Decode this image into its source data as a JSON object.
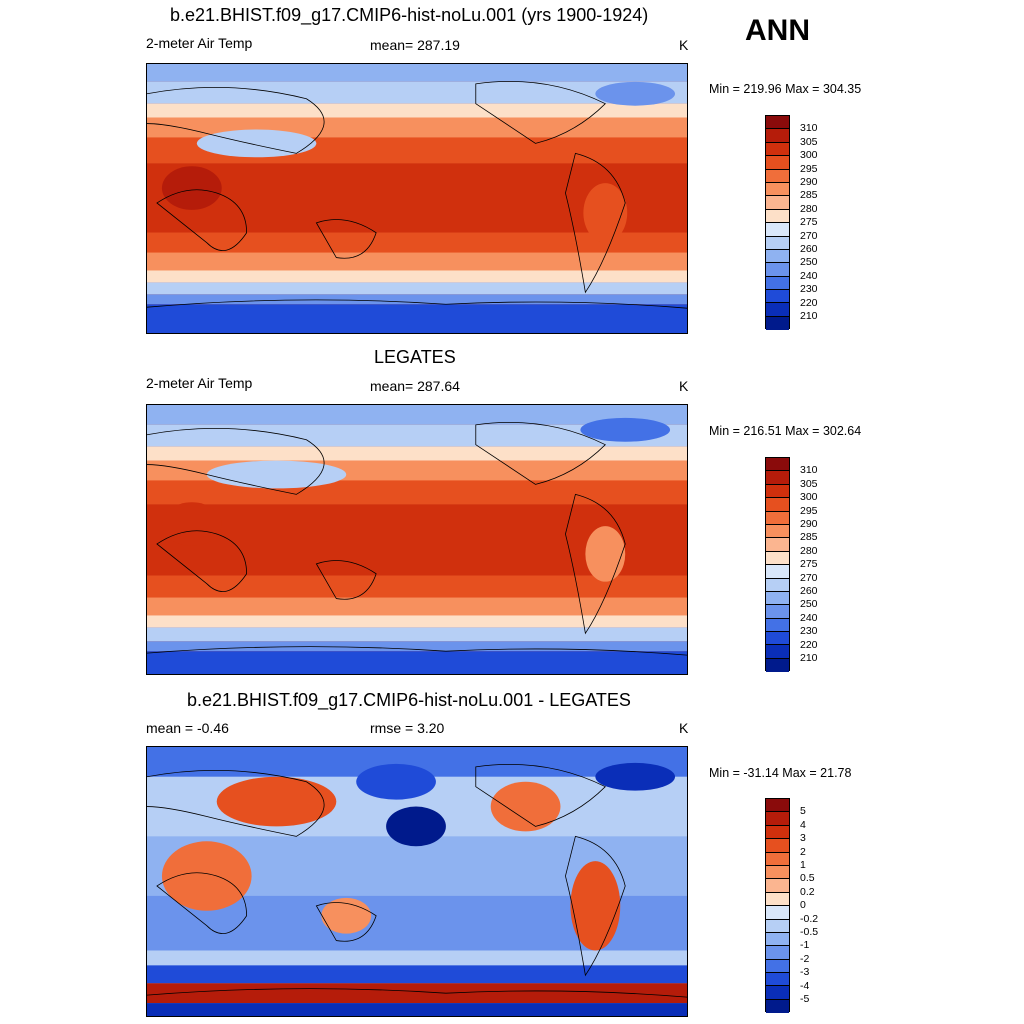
{
  "season": "ANN",
  "panels": [
    {
      "title": "b.e21.BHIST.f09_g17.CMIP6-hist-noLu.001 (yrs 1900-1924)",
      "left_label": "2-meter Air Temp",
      "center_label": "mean= 287.19",
      "units": "K",
      "minmax": "Min = 219.96 Max = 304.35",
      "colorbar_labels": [
        "310",
        "305",
        "300",
        "295",
        "290",
        "285",
        "280",
        "275",
        "270",
        "260",
        "250",
        "240",
        "230",
        "220",
        "210"
      ],
      "colorbar_colors": [
        "#8a0b0b",
        "#b51c0a",
        "#d0300d",
        "#e6501f",
        "#f06e3a",
        "#f7905e",
        "#fbb590",
        "#fde0c8",
        "#d9e7fa",
        "#b6cff5",
        "#8fb2f1",
        "#6b93ec",
        "#4371e6",
        "#1f4bd8",
        "#0a2eb8",
        "#001a8c"
      ]
    },
    {
      "title": "LEGATES",
      "left_label": "2-meter Air Temp",
      "center_label": "mean= 287.64",
      "units": "K",
      "minmax": "Min = 216.51 Max = 302.64",
      "colorbar_labels": [
        "310",
        "305",
        "300",
        "295",
        "290",
        "285",
        "280",
        "275",
        "270",
        "260",
        "250",
        "240",
        "230",
        "220",
        "210"
      ],
      "colorbar_colors": [
        "#8a0b0b",
        "#b51c0a",
        "#d0300d",
        "#e6501f",
        "#f06e3a",
        "#f7905e",
        "#fbb590",
        "#fde0c8",
        "#d9e7fa",
        "#b6cff5",
        "#8fb2f1",
        "#6b93ec",
        "#4371e6",
        "#1f4bd8",
        "#0a2eb8",
        "#001a8c"
      ]
    },
    {
      "title": "b.e21.BHIST.f09_g17.CMIP6-hist-noLu.001 - LEGATES",
      "left_label": "mean =  -0.46",
      "center_label": "rmse =   3.20",
      "units": "K",
      "minmax": "Min = -31.14 Max =  21.78",
      "colorbar_labels": [
        "5",
        "4",
        "3",
        "2",
        "1",
        "0.5",
        "0.2",
        "0",
        "-0.2",
        "-0.5",
        "-1",
        "-2",
        "-3",
        "-4",
        "-5"
      ],
      "colorbar_colors": [
        "#8a0b0b",
        "#b51c0a",
        "#d0300d",
        "#e6501f",
        "#f06e3a",
        "#f7905e",
        "#fbb590",
        "#fde0c8",
        "#d9e7fa",
        "#b6cff5",
        "#8fb2f1",
        "#6b93ec",
        "#4371e6",
        "#1f4bd8",
        "#0a2eb8",
        "#001a8c"
      ]
    }
  ]
}
